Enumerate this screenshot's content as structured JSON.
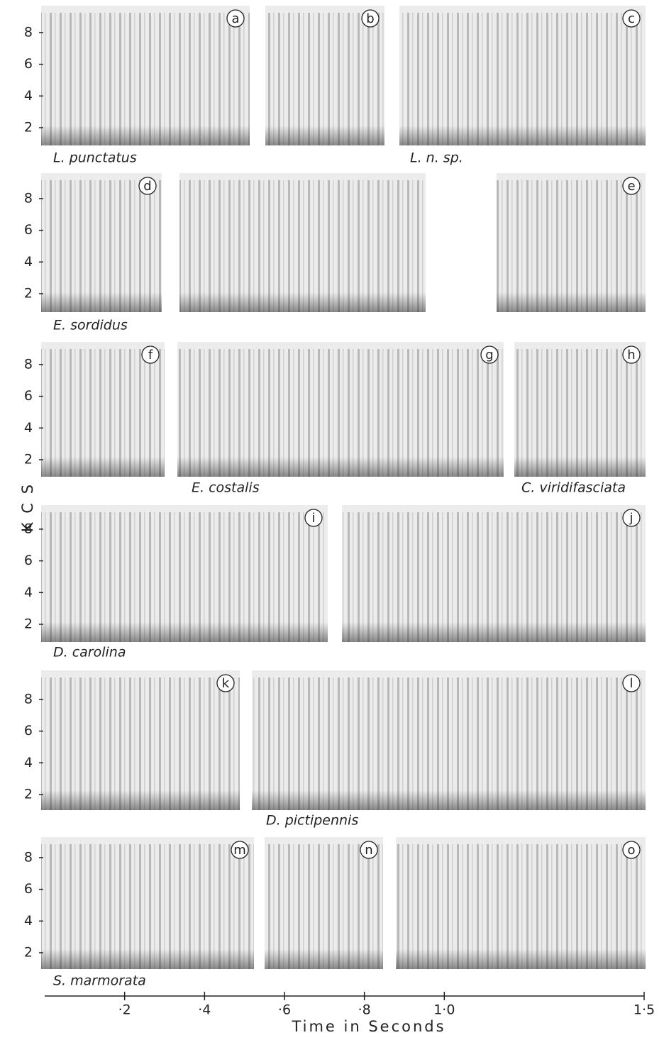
{
  "figure": {
    "y_axis_label": "K C S",
    "x_axis_label": "Time in Seconds",
    "xlim": [
      0,
      1.5
    ],
    "xticks": [
      {
        "value": 0.2,
        "label": "·2"
      },
      {
        "value": 0.4,
        "label": "·4"
      },
      {
        "value": 0.6,
        "label": "·6"
      },
      {
        "value": 0.8,
        "label": "·8"
      },
      {
        "value": 1.0,
        "label": "1·0"
      },
      {
        "value": 1.5,
        "label": "1·5"
      }
    ],
    "ylim": [
      1,
      9.5
    ],
    "yticks": [
      2,
      4,
      6,
      8
    ],
    "rows": [
      {
        "panels": [
          "a",
          "b",
          "c"
        ],
        "species": [
          "L. punctatus",
          "L. n. sp."
        ]
      },
      {
        "panels": [
          "d",
          "e"
        ],
        "species": [
          "E. sordidus"
        ]
      },
      {
        "panels": [
          "f",
          "g",
          "h"
        ],
        "species": [
          "E. costalis",
          "C. viridifasciata"
        ]
      },
      {
        "panels": [
          "i",
          "j"
        ],
        "species": [
          "D. carolina"
        ]
      },
      {
        "panels": [
          "k",
          "l"
        ],
        "species": [
          "D. pictipennis"
        ]
      },
      {
        "panels": [
          "m",
          "n",
          "o"
        ],
        "species": [
          "S. marmorata"
        ]
      }
    ]
  }
}
